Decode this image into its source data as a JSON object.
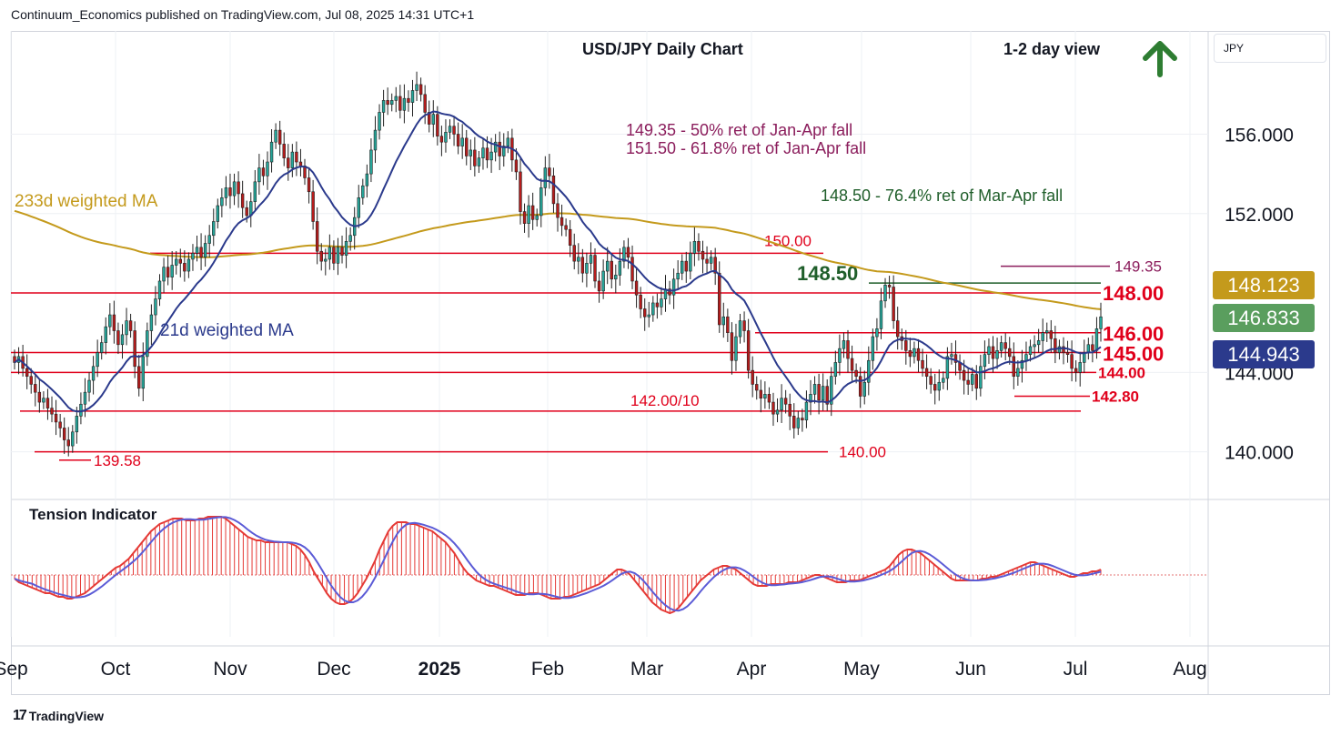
{
  "header": {
    "published": "Continuum_Economics published on TradingView.com, Jul 08, 2025 14:31 UTC+1"
  },
  "currency_pill": "JPY",
  "footer": {
    "brand": "TradingView",
    "logo_icon": "tradingview-logo-icon"
  },
  "colors": {
    "up": "#26a69a",
    "down": "#b71c1c",
    "ma21": "#2b3a8c",
    "ma233": "#c49a1c",
    "level": "#e0001b",
    "fib_green": "#1f5e2a",
    "fib_purple": "#8b1d5c",
    "arrow": "#2e7d32",
    "tension_bar": "#e53935",
    "tension_signal": "#5b5bd6",
    "badge_blue": "#2b3a8c",
    "badge_green": "#5a9e5e",
    "badge_gold": "#c49a1c"
  },
  "chart_data": [
    {
      "type": "candlestick",
      "title": "USD/JPY Daily Chart",
      "subtitle": "1-2 day view",
      "outlook_icon": "up-arrow-icon",
      "x_ticks": [
        "Sep",
        "Oct",
        "Nov",
        "Dec",
        "2025",
        "Feb",
        "Mar",
        "Apr",
        "May",
        "Jun",
        "Jul",
        "Aug"
      ],
      "y_ticks": [
        "140.000",
        "144.000",
        "152.000",
        "156.000"
      ],
      "ylim": [
        137.6,
        161.2
      ],
      "grid": true,
      "close": [
        144.5,
        144.8,
        144.2,
        143.8,
        143.4,
        143.0,
        142.5,
        142.7,
        142.2,
        141.9,
        141.5,
        141.2,
        140.6,
        140.3,
        141.0,
        141.8,
        142.4,
        143.0,
        143.6,
        144.3,
        145.0,
        145.5,
        146.3,
        146.9,
        146.1,
        145.4,
        145.9,
        146.6,
        146.1,
        144.3,
        143.2,
        144.8,
        146.1,
        146.9,
        147.7,
        148.6,
        149.3,
        148.8,
        149.4,
        149.7,
        149.5,
        149.1,
        149.7,
        150.0,
        150.3,
        149.8,
        150.5,
        150.9,
        151.6,
        152.4,
        152.8,
        153.3,
        152.9,
        153.6,
        153.0,
        152.3,
        151.9,
        152.6,
        153.6,
        154.3,
        153.9,
        154.6,
        155.6,
        156.2,
        155.5,
        154.8,
        154.3,
        155.1,
        154.6,
        154.4,
        153.8,
        153.1,
        151.6,
        150.1,
        149.6,
        149.7,
        150.3,
        149.5,
        150.3,
        149.9,
        150.6,
        150.9,
        151.8,
        152.8,
        153.4,
        154.0,
        155.2,
        156.2,
        157.1,
        157.7,
        157.5,
        157.7,
        157.9,
        157.2,
        157.8,
        157.6,
        158.2,
        158.5,
        158.0,
        157.1,
        156.5,
        157.0,
        155.9,
        155.6,
        156.1,
        156.4,
        156.0,
        155.4,
        155.8,
        154.9,
        155.2,
        154.4,
        154.8,
        155.3,
        154.7,
        155.1,
        155.6,
        154.9,
        155.4,
        155.8,
        154.7,
        154.1,
        152.1,
        151.5,
        152.4,
        151.7,
        151.9,
        153.3,
        154.3,
        153.9,
        152.5,
        151.8,
        151.4,
        151.2,
        150.4,
        149.6,
        149.8,
        149.0,
        149.5,
        149.9,
        148.6,
        148.1,
        149.1,
        149.6,
        148.7,
        148.9,
        149.6,
        150.3,
        149.8,
        148.6,
        147.9,
        147.2,
        146.8,
        146.9,
        147.5,
        147.3,
        147.7,
        148.2,
        147.9,
        148.7,
        149.0,
        149.6,
        149.1,
        150.0,
        150.6,
        150.1,
        149.7,
        149.5,
        149.8,
        149.0,
        146.4,
        146.8,
        146.0,
        144.6,
        145.8,
        146.6,
        146.1,
        144.1,
        143.4,
        143.1,
        142.7,
        142.9,
        142.5,
        141.9,
        142.1,
        142.7,
        142.4,
        141.8,
        141.2,
        141.7,
        141.6,
        142.5,
        142.9,
        143.4,
        142.6,
        143.3,
        142.4,
        143.8,
        144.5,
        145.2,
        145.6,
        144.7,
        144.1,
        143.8,
        142.8,
        143.5,
        144.6,
        145.8,
        146.2,
        147.6,
        148.4,
        148.3,
        146.6,
        145.8,
        145.6,
        145.1,
        144.8,
        145.2,
        144.6,
        144.2,
        143.8,
        143.4,
        143.1,
        143.5,
        143.7,
        144.8,
        144.9,
        144.5,
        144.1,
        143.6,
        143.4,
        143.9,
        143.2,
        144.3,
        144.9,
        145.3,
        144.7,
        145.1,
        145.5,
        145.2,
        144.8,
        143.8,
        144.2,
        144.6,
        144.9,
        145.3,
        145.4,
        145.6,
        146.0,
        146.1,
        145.7,
        145.0,
        145.3,
        145.0,
        144.9,
        144.2,
        144.0,
        144.5,
        145.0,
        145.4,
        145.1,
        146.2,
        146.8
      ],
      "moving_averages": [
        {
          "name": "233d weighted MA",
          "approx_values_start_end": [
            152.2,
            148.12
          ]
        },
        {
          "name": "21d weighted MA",
          "approx_values_start_end": [
            144.0,
            144.94
          ]
        }
      ],
      "levels": [
        {
          "value": 150.0,
          "label": "150.00"
        },
        {
          "value": 148.5,
          "label": "148.50"
        },
        {
          "value": 148.0,
          "label": "148.00"
        },
        {
          "value": 146.0,
          "label": "146.00"
        },
        {
          "value": 145.0,
          "label": "145.00"
        },
        {
          "value": 144.0,
          "label": "144.00"
        },
        {
          "value": 142.8,
          "label": "142.80"
        },
        {
          "value": 142.05,
          "label": "142.00/10"
        },
        {
          "value": 140.0,
          "label": "140.00"
        },
        {
          "value": 139.58,
          "label": "139.58"
        },
        {
          "value": 149.35,
          "label": "149.35"
        }
      ],
      "annotations": [
        "149.35 - 50% ret of Jan-Apr fall",
        "151.50 - 61.8% ret of Jan-Apr fall",
        "148.50 - 76.4% ret of Mar-Apr fall"
      ],
      "price_badges": [
        {
          "value": "148.123",
          "series": "233d weighted MA"
        },
        {
          "value": "146.833",
          "series": "last price"
        },
        {
          "value": "144.943",
          "series": "21d weighted MA"
        }
      ]
    },
    {
      "type": "bar",
      "title": "Tension Indicator",
      "baseline": 0,
      "values": [
        -0.2,
        -0.4,
        -0.5,
        -0.6,
        -0.7,
        -0.8,
        -0.9,
        -1.0,
        -1.0,
        -1.1,
        -1.2,
        -1.2,
        -1.3,
        -1.3,
        -1.2,
        -1.1,
        -1.0,
        -0.8,
        -0.6,
        -0.4,
        -0.2,
        0.0,
        0.2,
        0.4,
        0.5,
        0.7,
        0.9,
        1.2,
        1.5,
        1.8,
        2.1,
        2.4,
        2.6,
        2.8,
        2.9,
        3.0,
        3.1,
        3.1,
        3.1,
        3.0,
        3.0,
        3.0,
        3.1,
        3.1,
        3.2,
        3.2,
        3.2,
        3.2,
        3.1,
        2.9,
        2.7,
        2.5,
        2.3,
        2.1,
        2.0,
        1.9,
        1.9,
        1.8,
        1.8,
        1.8,
        1.8,
        1.8,
        1.8,
        1.7,
        1.6,
        1.4,
        1.1,
        0.7,
        0.2,
        -0.2,
        -0.6,
        -1.0,
        -1.3,
        -1.5,
        -1.6,
        -1.6,
        -1.5,
        -1.3,
        -1.0,
        -0.6,
        -0.2,
        0.3,
        0.8,
        1.4,
        1.9,
        2.4,
        2.7,
        2.9,
        2.9,
        2.9,
        2.8,
        2.8,
        2.7,
        2.6,
        2.5,
        2.4,
        2.2,
        2.0,
        1.8,
        1.5,
        1.2,
        0.8,
        0.4,
        0.1,
        -0.1,
        -0.3,
        -0.4,
        -0.5,
        -0.6,
        -0.6,
        -0.7,
        -0.8,
        -0.9,
        -1.0,
        -1.1,
        -1.1,
        -1.1,
        -1.0,
        -1.0,
        -1.0,
        -1.1,
        -1.2,
        -1.3,
        -1.3,
        -1.3,
        -1.2,
        -1.2,
        -1.1,
        -1.0,
        -0.9,
        -0.8,
        -0.7,
        -0.6,
        -0.5,
        -0.3,
        -0.1,
        0.1,
        0.3,
        0.3,
        0.2,
        0.0,
        -0.3,
        -0.6,
        -0.9,
        -1.2,
        -1.5,
        -1.7,
        -1.9,
        -2.0,
        -2.1,
        -2.0,
        -1.8,
        -1.5,
        -1.2,
        -0.9,
        -0.6,
        -0.3,
        -0.1,
        0.1,
        0.3,
        0.4,
        0.5,
        0.5,
        0.4,
        0.3,
        0.1,
        -0.1,
        -0.3,
        -0.5,
        -0.6,
        -0.6,
        -0.6,
        -0.5,
        -0.5,
        -0.5,
        -0.5,
        -0.4,
        -0.4,
        -0.4,
        -0.3,
        -0.2,
        -0.1,
        0.0,
        0.0,
        -0.1,
        -0.2,
        -0.3,
        -0.4,
        -0.4,
        -0.4,
        -0.3,
        -0.3,
        -0.3,
        -0.2,
        -0.1,
        0.0,
        0.1,
        0.2,
        0.3,
        0.5,
        0.8,
        1.1,
        1.3,
        1.4,
        1.4,
        1.3,
        1.2,
        1.0,
        0.8,
        0.6,
        0.4,
        0.2,
        0.0,
        -0.2,
        -0.3,
        -0.3,
        -0.3,
        -0.3,
        -0.3,
        -0.3,
        -0.2,
        -0.2,
        -0.1,
        -0.1,
        0.0,
        0.1,
        0.2,
        0.3,
        0.4,
        0.5,
        0.6,
        0.7,
        0.7,
        0.6,
        0.5,
        0.4,
        0.3,
        0.2,
        0.1,
        0.0,
        -0.1,
        -0.1,
        0.0,
        0.1,
        0.1,
        0.2,
        0.2,
        0.3
      ]
    }
  ]
}
